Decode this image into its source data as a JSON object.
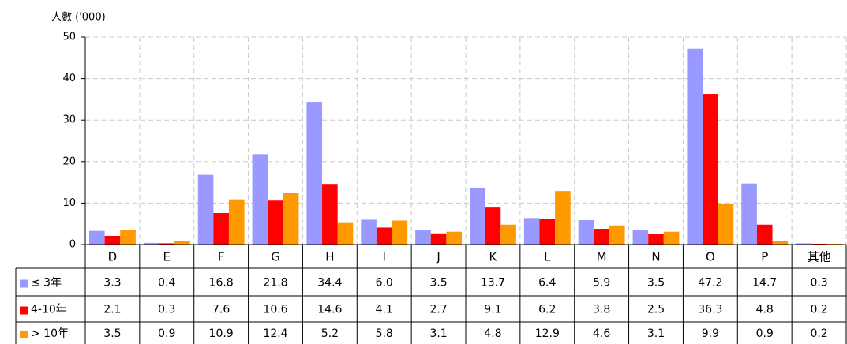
{
  "chart_data": {
    "type": "bar",
    "y_label": "人數 ('000)",
    "categories": [
      "D",
      "E",
      "F",
      "G",
      "H",
      "I",
      "J",
      "K",
      "L",
      "M",
      "N",
      "O",
      "P",
      "其他"
    ],
    "series": [
      {
        "name": "≤ 3年",
        "color": "#9999ff",
        "values": [
          3.3,
          0.4,
          16.8,
          21.8,
          34.4,
          6.0,
          3.5,
          13.7,
          6.4,
          5.9,
          3.5,
          47.2,
          14.7,
          0.3
        ],
        "value_labels": [
          "3.3",
          "0.4",
          "16.8",
          "21.8",
          "34.4",
          "6.0",
          "3.5",
          "13.7",
          "6.4",
          "5.9",
          "3.5",
          "47.2",
          "14.7",
          "0.3"
        ]
      },
      {
        "name": "4-10年",
        "color": "#ff0000",
        "values": [
          2.1,
          0.3,
          7.6,
          10.6,
          14.6,
          4.1,
          2.7,
          9.1,
          6.2,
          3.8,
          2.5,
          36.3,
          4.8,
          0.2
        ]
      },
      {
        "name": "> 10年",
        "color": "#ff9900",
        "values": [
          3.5,
          0.9,
          10.9,
          12.4,
          5.2,
          5.8,
          3.1,
          4.8,
          12.9,
          4.6,
          3.1,
          9.9,
          0.9,
          0.2
        ]
      }
    ],
    "ylim": [
      0,
      50
    ],
    "yticks": [
      0,
      10,
      20,
      30,
      40,
      50
    ],
    "grid": true
  }
}
